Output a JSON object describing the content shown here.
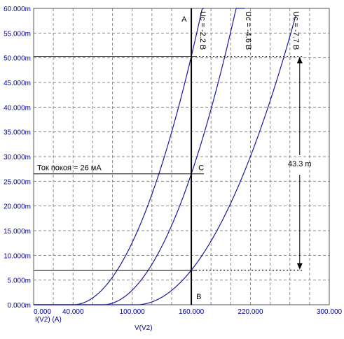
{
  "chart_data": {
    "type": "line",
    "xlabel": "V(V2)",
    "ylabel": "I(V2) (A)",
    "xlim": [
      0,
      300
    ],
    "ylim": [
      0,
      0.06
    ],
    "x_ticks": [
      {
        "value": 0,
        "label": "0.000"
      },
      {
        "value": 40,
        "label": "40.000"
      },
      {
        "value": 100,
        "label": "100.000"
      },
      {
        "value": 160,
        "label": "160.000"
      },
      {
        "value": 220,
        "label": "220.000"
      },
      {
        "value": 300,
        "label": "300.000"
      }
    ],
    "y_ticks": [
      {
        "value": 0,
        "label": "0.000m"
      },
      {
        "value": 0.005,
        "label": "5.000m"
      },
      {
        "value": 0.01,
        "label": "10.000m"
      },
      {
        "value": 0.015,
        "label": "15.000m"
      },
      {
        "value": 0.02,
        "label": "20.000m"
      },
      {
        "value": 0.025,
        "label": "25.000m"
      },
      {
        "value": 0.03,
        "label": "30.000m"
      },
      {
        "value": 0.035,
        "label": "35.000m"
      },
      {
        "value": 0.04,
        "label": "40.000m"
      },
      {
        "value": 0.045,
        "label": "45.000m"
      },
      {
        "value": 0.05,
        "label": "50.000m"
      },
      {
        "value": 0.055,
        "label": "55.000m"
      },
      {
        "value": 0.06,
        "label": "60.000m"
      }
    ],
    "grid": true,
    "grid_x_step": 20,
    "grid_y_step": 0.005,
    "series": [
      {
        "name": "Uc = -2.2 B",
        "x0": 40,
        "x_ref": 160,
        "y_ref": 0.0503,
        "x_end": 173
      },
      {
        "name": "Uc = -4.6 B",
        "x0": 70,
        "x_ref": 160,
        "y_ref": 0.0265,
        "x_end": 214
      },
      {
        "name": "Uc = -7.7 B",
        "x0": 104,
        "x_ref": 160,
        "y_ref": 0.007,
        "x_end": 266
      }
    ],
    "annotations": {
      "point_A": "A",
      "point_B": "B",
      "point_C": "C",
      "quiescent_text": "Ток покоя = 26 мА",
      "delta_label": "43.3 m",
      "vline_x": 160,
      "y_top": 0.0503,
      "y_mid": 0.0265,
      "y_bottom": 0.007,
      "dotted_x_end": 270,
      "arrow_x": 270
    },
    "colors": {
      "axis_text": "#0000aa",
      "curve": "#1a1aa0",
      "grid": "#8c8c8c",
      "annotation": "#000000"
    }
  }
}
